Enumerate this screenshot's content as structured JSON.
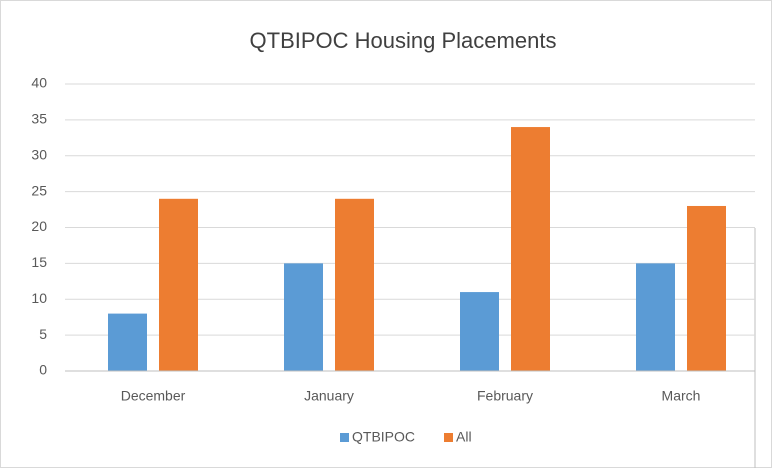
{
  "chart_data": {
    "type": "bar",
    "title": "QTBIPOC Housing Placements",
    "categories": [
      "December",
      "January",
      "February",
      "March"
    ],
    "series": [
      {
        "name": "QTBIPOC",
        "color": "#5b9bd5",
        "values": [
          8,
          15,
          11,
          15
        ]
      },
      {
        "name": "All",
        "color": "#ed7d31",
        "values": [
          24,
          24,
          34,
          23
        ]
      }
    ],
    "ylim": [
      0,
      40
    ],
    "yticks": [
      0,
      5,
      10,
      15,
      20,
      25,
      30,
      35,
      40
    ],
    "grid": true,
    "legend": "bottom"
  }
}
